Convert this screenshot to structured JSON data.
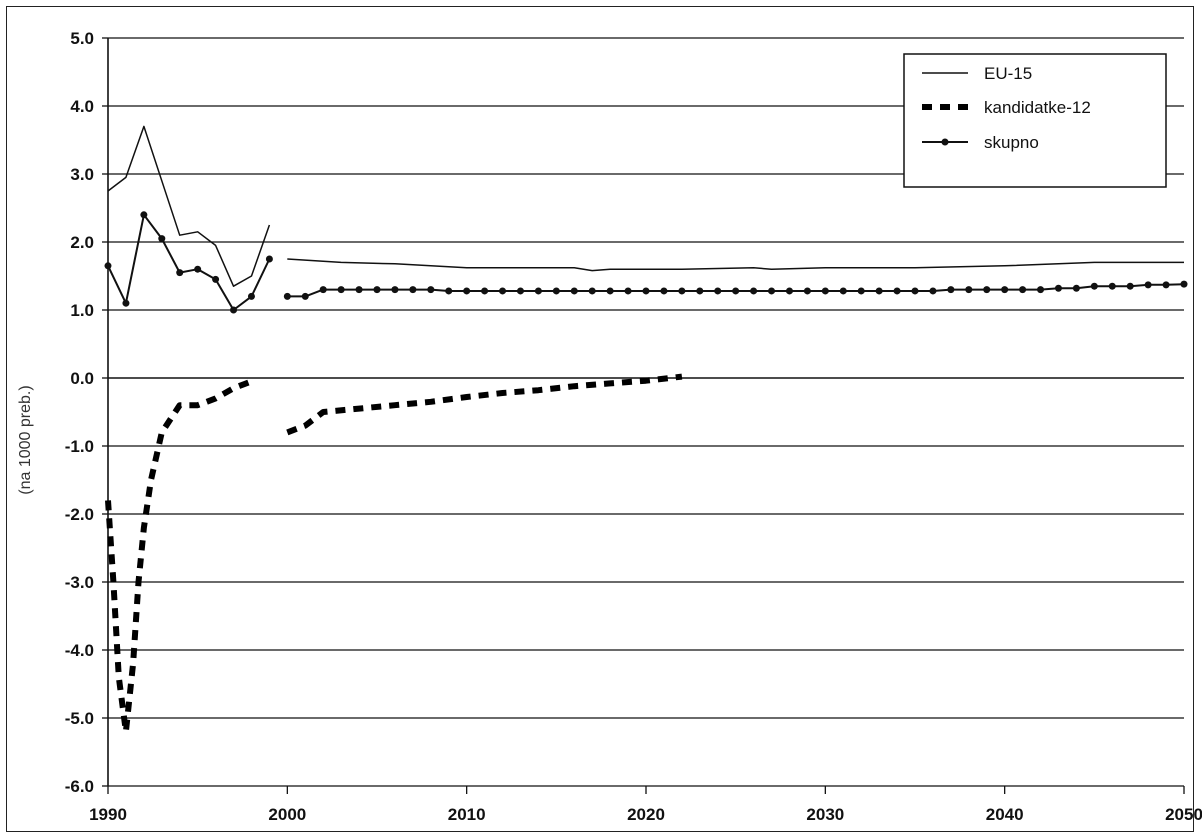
{
  "chart_data": {
    "type": "line",
    "title": "",
    "xlabel": "",
    "ylabel": "(na 1000 preb.)",
    "xlim": [
      1990,
      2050
    ],
    "ylim": [
      -6.0,
      5.0
    ],
    "x_ticks": [
      "1990",
      "2000",
      "2010",
      "2020",
      "2030",
      "2040",
      "2050"
    ],
    "y_ticks": [
      "5.0",
      "4.0",
      "3.0",
      "2.0",
      "1.0",
      "0.0",
      "-1.0",
      "-2.0",
      "-3.0",
      "-4.0",
      "-5.0",
      "-6.0"
    ],
    "grid": "horizontal",
    "legend_position": "top-right",
    "series": [
      {
        "name": "EU-15",
        "style": "thin-solid",
        "segments": [
          {
            "x": [
              1990,
              1991,
              1992,
              1993,
              1994,
              1995,
              1996,
              1997,
              1998,
              1999
            ],
            "y": [
              2.75,
              2.95,
              3.7,
              2.9,
              2.1,
              2.15,
              1.95,
              1.35,
              1.5,
              2.25
            ]
          },
          {
            "x": [
              2000,
              2003,
              2006,
              2010,
              2016,
              2017,
              2018,
              2022,
              2026,
              2027,
              2030,
              2035,
              2040,
              2045,
              2050
            ],
            "y": [
              1.75,
              1.7,
              1.68,
              1.62,
              1.62,
              1.58,
              1.6,
              1.6,
              1.62,
              1.6,
              1.62,
              1.62,
              1.65,
              1.7,
              1.7
            ]
          }
        ]
      },
      {
        "name": "kandidatke-12",
        "style": "thick-dashed",
        "segments": [
          {
            "x": [
              1990,
              1990.3,
              1990.6,
              1991,
              1991.4,
              1991.7,
              1992,
              1992.4,
              1993,
              1994,
              1995,
              1996,
              1997,
              1998
            ],
            "y": [
              -1.8,
              -3.0,
              -4.4,
              -5.2,
              -4.2,
              -3.0,
              -2.2,
              -1.5,
              -0.8,
              -0.4,
              -0.4,
              -0.3,
              -0.15,
              -0.05
            ]
          },
          {
            "x": [
              2000,
              2001,
              2002,
              2004,
              2006,
              2008,
              2010,
              2012,
              2014,
              2016,
              2018,
              2020,
              2022
            ],
            "y": [
              -0.8,
              -0.7,
              -0.5,
              -0.45,
              -0.4,
              -0.35,
              -0.28,
              -0.22,
              -0.18,
              -0.12,
              -0.08,
              -0.04,
              0.02
            ]
          }
        ]
      },
      {
        "name": "skupno",
        "style": "solid-markers",
        "segments": [
          {
            "x": [
              1990,
              1991,
              1992,
              1993,
              1994,
              1995,
              1996,
              1997,
              1998,
              1999
            ],
            "y": [
              1.65,
              1.1,
              2.4,
              2.05,
              1.55,
              1.6,
              1.45,
              1.0,
              1.2,
              1.75
            ]
          },
          {
            "x": [
              2000,
              2001,
              2002,
              2003,
              2004,
              2005,
              2006,
              2007,
              2008,
              2009,
              2010,
              2011,
              2012,
              2013,
              2014,
              2015,
              2016,
              2017,
              2018,
              2019,
              2020,
              2021,
              2022,
              2023,
              2024,
              2025,
              2026,
              2027,
              2028,
              2029,
              2030,
              2031,
              2032,
              2033,
              2034,
              2035,
              2036,
              2037,
              2038,
              2039,
              2040,
              2041,
              2042,
              2043,
              2044,
              2045,
              2046,
              2047,
              2048,
              2049,
              2050
            ],
            "y": [
              1.2,
              1.2,
              1.3,
              1.3,
              1.3,
              1.3,
              1.3,
              1.3,
              1.3,
              1.28,
              1.28,
              1.28,
              1.28,
              1.28,
              1.28,
              1.28,
              1.28,
              1.28,
              1.28,
              1.28,
              1.28,
              1.28,
              1.28,
              1.28,
              1.28,
              1.28,
              1.28,
              1.28,
              1.28,
              1.28,
              1.28,
              1.28,
              1.28,
              1.28,
              1.28,
              1.28,
              1.28,
              1.3,
              1.3,
              1.3,
              1.3,
              1.3,
              1.3,
              1.32,
              1.32,
              1.35,
              1.35,
              1.35,
              1.37,
              1.37,
              1.38
            ]
          }
        ]
      }
    ]
  }
}
